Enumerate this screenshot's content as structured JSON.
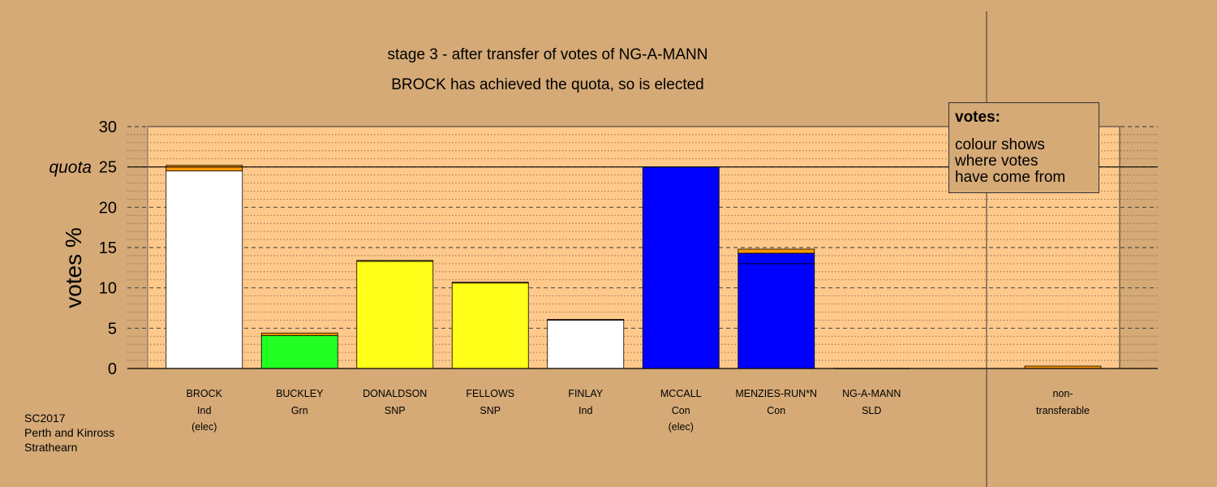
{
  "chart_data": {
    "type": "bar",
    "stacked": true,
    "title": "stage 3 - after transfer of votes of NG-A-MANN",
    "subtitle": "BROCK has achieved the quota, so is elected",
    "ylabel": "votes %",
    "ylim": [
      0,
      30
    ],
    "yticks": [
      0,
      5,
      10,
      15,
      20,
      25,
      30
    ],
    "quota": {
      "label": "quota",
      "value": 25
    },
    "grid": true,
    "candidates": [
      {
        "name": "BROCK",
        "party": "Ind",
        "note": "(elec)",
        "segments": [
          {
            "value": 24.5,
            "color": "#FFFFFF"
          },
          {
            "value": 0.7,
            "color": "#FF9900"
          }
        ]
      },
      {
        "name": "BUCKLEY",
        "party": "Grn",
        "note": "",
        "segments": [
          {
            "value": 4.1,
            "color": "#22FF22"
          },
          {
            "value": 0.3,
            "color": "#FF9900"
          }
        ]
      },
      {
        "name": "DONALDSON",
        "party": "SNP",
        "note": "",
        "segments": [
          {
            "value": 13.3,
            "color": "#FFFF1A"
          },
          {
            "value": 0.1,
            "color": "#FF9900"
          }
        ]
      },
      {
        "name": "FELLOWS",
        "party": "SNP",
        "note": "",
        "segments": [
          {
            "value": 10.6,
            "color": "#FFFF1A"
          },
          {
            "value": 0.1,
            "color": "#FF9900"
          }
        ]
      },
      {
        "name": "FINLAY",
        "party": "Ind",
        "note": "",
        "segments": [
          {
            "value": 6.0,
            "color": "#FFFFFF"
          },
          {
            "value": 0.1,
            "color": "#FF9900"
          }
        ]
      },
      {
        "name": "MCCALL",
        "party": "Con",
        "note": "(elec)",
        "segments": [
          {
            "value": 25.0,
            "color": "#0000FF"
          }
        ]
      },
      {
        "name": "MENZIES-RUN*N",
        "party": "Con",
        "note": "",
        "segments": [
          {
            "value": 13.0,
            "color": "#0000FF"
          },
          {
            "value": 1.3,
            "color": "#0000FF"
          },
          {
            "value": 0.5,
            "color": "#FF9900"
          }
        ]
      },
      {
        "name": "NG-A-MANN",
        "party": "SLD",
        "note": "",
        "segments": []
      }
    ],
    "nontransferable": {
      "label_1": "non-",
      "label_2": "transferable",
      "segments": [
        {
          "value": 0.3,
          "color": "#FF9900"
        }
      ]
    }
  },
  "legend": {
    "title": "votes:",
    "line1": "colour shows",
    "line2": "where votes",
    "line3": "have come from"
  },
  "footer": {
    "line1": "SC2017",
    "line2": "Perth and Kinross",
    "line3": "Strathearn"
  }
}
